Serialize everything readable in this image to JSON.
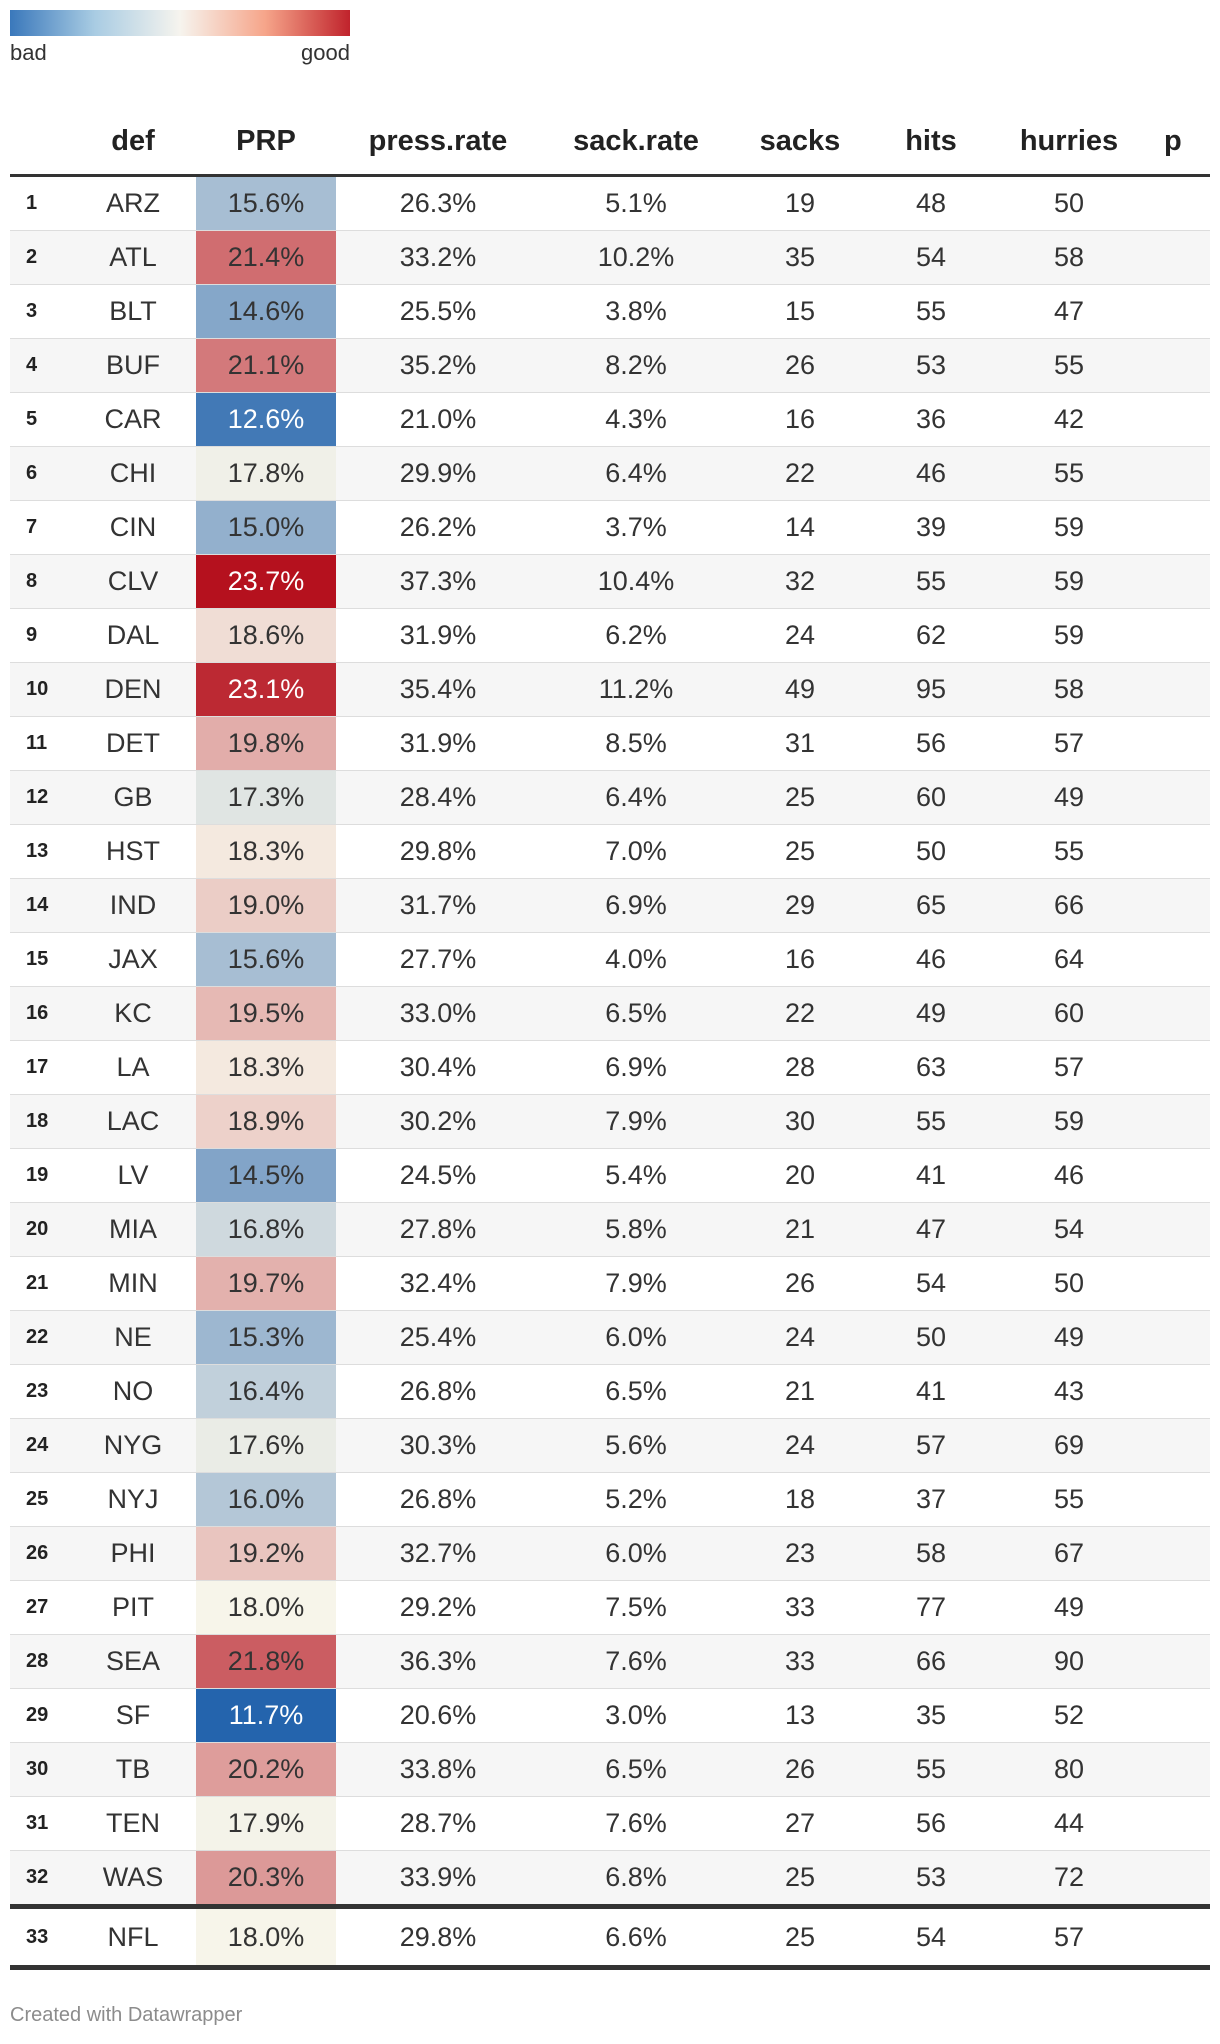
{
  "legend": {
    "low_label": "bad",
    "high_label": "good"
  },
  "table": {
    "headers": [
      "",
      "def",
      "PRP",
      "press.rate",
      "sack.rate",
      "sacks",
      "hits",
      "hurries",
      "p"
    ],
    "rows": [
      {
        "rank": "1",
        "def": "ARZ",
        "prp": "15.6%",
        "press_rate": "26.3%",
        "sack_rate": "5.1%",
        "sacks": "19",
        "hits": "48",
        "hurries": "50"
      },
      {
        "rank": "2",
        "def": "ATL",
        "prp": "21.4%",
        "press_rate": "33.2%",
        "sack_rate": "10.2%",
        "sacks": "35",
        "hits": "54",
        "hurries": "58"
      },
      {
        "rank": "3",
        "def": "BLT",
        "prp": "14.6%",
        "press_rate": "25.5%",
        "sack_rate": "3.8%",
        "sacks": "15",
        "hits": "55",
        "hurries": "47"
      },
      {
        "rank": "4",
        "def": "BUF",
        "prp": "21.1%",
        "press_rate": "35.2%",
        "sack_rate": "8.2%",
        "sacks": "26",
        "hits": "53",
        "hurries": "55"
      },
      {
        "rank": "5",
        "def": "CAR",
        "prp": "12.6%",
        "press_rate": "21.0%",
        "sack_rate": "4.3%",
        "sacks": "16",
        "hits": "36",
        "hurries": "42"
      },
      {
        "rank": "6",
        "def": "CHI",
        "prp": "17.8%",
        "press_rate": "29.9%",
        "sack_rate": "6.4%",
        "sacks": "22",
        "hits": "46",
        "hurries": "55"
      },
      {
        "rank": "7",
        "def": "CIN",
        "prp": "15.0%",
        "press_rate": "26.2%",
        "sack_rate": "3.7%",
        "sacks": "14",
        "hits": "39",
        "hurries": "59"
      },
      {
        "rank": "8",
        "def": "CLV",
        "prp": "23.7%",
        "press_rate": "37.3%",
        "sack_rate": "10.4%",
        "sacks": "32",
        "hits": "55",
        "hurries": "59"
      },
      {
        "rank": "9",
        "def": "DAL",
        "prp": "18.6%",
        "press_rate": "31.9%",
        "sack_rate": "6.2%",
        "sacks": "24",
        "hits": "62",
        "hurries": "59"
      },
      {
        "rank": "10",
        "def": "DEN",
        "prp": "23.1%",
        "press_rate": "35.4%",
        "sack_rate": "11.2%",
        "sacks": "49",
        "hits": "95",
        "hurries": "58"
      },
      {
        "rank": "11",
        "def": "DET",
        "prp": "19.8%",
        "press_rate": "31.9%",
        "sack_rate": "8.5%",
        "sacks": "31",
        "hits": "56",
        "hurries": "57"
      },
      {
        "rank": "12",
        "def": "GB",
        "prp": "17.3%",
        "press_rate": "28.4%",
        "sack_rate": "6.4%",
        "sacks": "25",
        "hits": "60",
        "hurries": "49"
      },
      {
        "rank": "13",
        "def": "HST",
        "prp": "18.3%",
        "press_rate": "29.8%",
        "sack_rate": "7.0%",
        "sacks": "25",
        "hits": "50",
        "hurries": "55"
      },
      {
        "rank": "14",
        "def": "IND",
        "prp": "19.0%",
        "press_rate": "31.7%",
        "sack_rate": "6.9%",
        "sacks": "29",
        "hits": "65",
        "hurries": "66"
      },
      {
        "rank": "15",
        "def": "JAX",
        "prp": "15.6%",
        "press_rate": "27.7%",
        "sack_rate": "4.0%",
        "sacks": "16",
        "hits": "46",
        "hurries": "64"
      },
      {
        "rank": "16",
        "def": "KC",
        "prp": "19.5%",
        "press_rate": "33.0%",
        "sack_rate": "6.5%",
        "sacks": "22",
        "hits": "49",
        "hurries": "60"
      },
      {
        "rank": "17",
        "def": "LA",
        "prp": "18.3%",
        "press_rate": "30.4%",
        "sack_rate": "6.9%",
        "sacks": "28",
        "hits": "63",
        "hurries": "57"
      },
      {
        "rank": "18",
        "def": "LAC",
        "prp": "18.9%",
        "press_rate": "30.2%",
        "sack_rate": "7.9%",
        "sacks": "30",
        "hits": "55",
        "hurries": "59"
      },
      {
        "rank": "19",
        "def": "LV",
        "prp": "14.5%",
        "press_rate": "24.5%",
        "sack_rate": "5.4%",
        "sacks": "20",
        "hits": "41",
        "hurries": "46"
      },
      {
        "rank": "20",
        "def": "MIA",
        "prp": "16.8%",
        "press_rate": "27.8%",
        "sack_rate": "5.8%",
        "sacks": "21",
        "hits": "47",
        "hurries": "54"
      },
      {
        "rank": "21",
        "def": "MIN",
        "prp": "19.7%",
        "press_rate": "32.4%",
        "sack_rate": "7.9%",
        "sacks": "26",
        "hits": "54",
        "hurries": "50"
      },
      {
        "rank": "22",
        "def": "NE",
        "prp": "15.3%",
        "press_rate": "25.4%",
        "sack_rate": "6.0%",
        "sacks": "24",
        "hits": "50",
        "hurries": "49"
      },
      {
        "rank": "23",
        "def": "NO",
        "prp": "16.4%",
        "press_rate": "26.8%",
        "sack_rate": "6.5%",
        "sacks": "21",
        "hits": "41",
        "hurries": "43"
      },
      {
        "rank": "24",
        "def": "NYG",
        "prp": "17.6%",
        "press_rate": "30.3%",
        "sack_rate": "5.6%",
        "sacks": "24",
        "hits": "57",
        "hurries": "69"
      },
      {
        "rank": "25",
        "def": "NYJ",
        "prp": "16.0%",
        "press_rate": "26.8%",
        "sack_rate": "5.2%",
        "sacks": "18",
        "hits": "37",
        "hurries": "55"
      },
      {
        "rank": "26",
        "def": "PHI",
        "prp": "19.2%",
        "press_rate": "32.7%",
        "sack_rate": "6.0%",
        "sacks": "23",
        "hits": "58",
        "hurries": "67"
      },
      {
        "rank": "27",
        "def": "PIT",
        "prp": "18.0%",
        "press_rate": "29.2%",
        "sack_rate": "7.5%",
        "sacks": "33",
        "hits": "77",
        "hurries": "49"
      },
      {
        "rank": "28",
        "def": "SEA",
        "prp": "21.8%",
        "press_rate": "36.3%",
        "sack_rate": "7.6%",
        "sacks": "33",
        "hits": "66",
        "hurries": "90"
      },
      {
        "rank": "29",
        "def": "SF",
        "prp": "11.7%",
        "press_rate": "20.6%",
        "sack_rate": "3.0%",
        "sacks": "13",
        "hits": "35",
        "hurries": "52"
      },
      {
        "rank": "30",
        "def": "TB",
        "prp": "20.2%",
        "press_rate": "33.8%",
        "sack_rate": "6.5%",
        "sacks": "26",
        "hits": "55",
        "hurries": "80"
      },
      {
        "rank": "31",
        "def": "TEN",
        "prp": "17.9%",
        "press_rate": "28.7%",
        "sack_rate": "7.6%",
        "sacks": "27",
        "hits": "56",
        "hurries": "44"
      },
      {
        "rank": "32",
        "def": "WAS",
        "prp": "20.3%",
        "press_rate": "33.9%",
        "sack_rate": "6.8%",
        "sacks": "25",
        "hits": "53",
        "hurries": "72"
      }
    ],
    "total_row": {
      "rank": "33",
      "def": "NFL",
      "prp": "18.0%",
      "press_rate": "29.8%",
      "sack_rate": "6.6%",
      "sacks": "25",
      "hits": "54",
      "hurries": "57"
    }
  },
  "chart_data": {
    "type": "table",
    "columns": [
      "def",
      "PRP",
      "press.rate",
      "sack.rate",
      "sacks",
      "hits",
      "hurries"
    ],
    "heatmap_column": "PRP",
    "color_scale": {
      "low": "#2464ad",
      "mid": "#f7f5ea",
      "high": "#b5111e",
      "domain": [
        11.7,
        18.0,
        23.7
      ]
    }
  },
  "footer": {
    "credit": "Created with Datawrapper"
  }
}
